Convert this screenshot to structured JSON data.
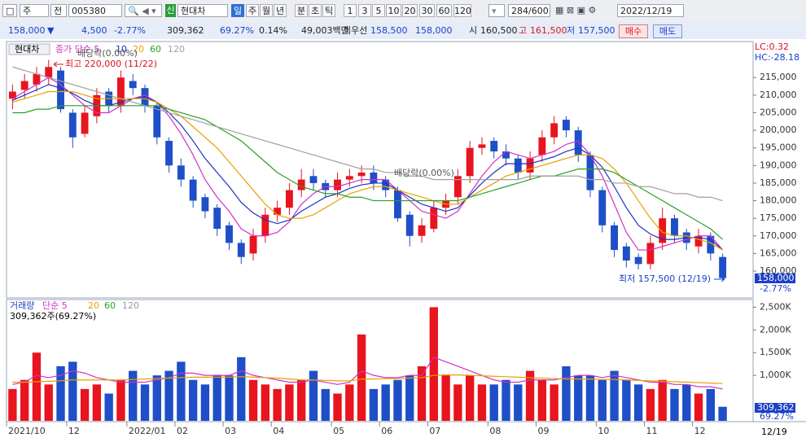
{
  "toolbar": {
    "market": "주",
    "scope": "전",
    "code": "005380",
    "badge": "신",
    "name": "현대차",
    "periods": [
      "일",
      "주",
      "월",
      "년",
      "분",
      "초",
      "틱"
    ],
    "intervals": [
      "1",
      "3",
      "5",
      "10",
      "20",
      "30",
      "60",
      "120"
    ],
    "count": "284/600",
    "date": "2022/12/19"
  },
  "quote": {
    "price": "158,000",
    "direction": "▼",
    "change": "4,500",
    "rate": "-2.77%",
    "volume": "309,362",
    "volume_rate": "69.27%",
    "turnover_rate": "0.14%",
    "amount": "49,003백만",
    "best_label": "최우선",
    "best_ask": "158,500",
    "best_bid": "158,000",
    "open_label": "시",
    "open": "160,500",
    "high_label": "고",
    "high": "161,500",
    "low_label": "저",
    "low": "157,500",
    "buy": "매수",
    "sell": "매도"
  },
  "chart_data": [
    {
      "type": "candlestick",
      "title": "현대차",
      "up_color": "#e8141e",
      "down_color": "#1e4fc8",
      "ylim": [
        152600,
        225000
      ],
      "yticks": [
        {
          "value": 160000,
          "label": "160,000"
        },
        {
          "value": 165000,
          "label": "165,000"
        },
        {
          "value": 170000,
          "label": "170,000"
        },
        {
          "value": 175000,
          "label": "175,000"
        },
        {
          "value": 180000,
          "label": "180,000"
        },
        {
          "value": 185000,
          "label": "185,000"
        },
        {
          "value": 190000,
          "label": "190,000"
        },
        {
          "value": 195000,
          "label": "195,000"
        },
        {
          "value": 200000,
          "label": "200,000"
        },
        {
          "value": 205000,
          "label": "205,000"
        },
        {
          "value": 210000,
          "label": "210,000"
        },
        {
          "value": 215000,
          "label": "215,000"
        }
      ],
      "open": [
        209000,
        211500,
        213000,
        215000,
        217000,
        205000,
        199000,
        204000,
        211000,
        207000,
        214000,
        212000,
        207000,
        197000,
        190000,
        186000,
        181000,
        178000,
        173000,
        168000,
        165000,
        170000,
        176000,
        178000,
        183000,
        187000,
        185000,
        183000,
        186000,
        187000,
        188000,
        186000,
        183000,
        176000,
        170000,
        172000,
        178000,
        181000,
        187000,
        195000,
        197000,
        194000,
        192000,
        188000,
        193000,
        198000,
        203000,
        200000,
        193000,
        183000,
        173000,
        167000,
        164000,
        162000,
        168000,
        175000,
        171000,
        167000,
        170000,
        164000
      ],
      "high": [
        213000,
        216000,
        218000,
        220000,
        218000,
        206000,
        207000,
        212000,
        212000,
        217000,
        216000,
        213000,
        208000,
        198000,
        192000,
        187000,
        182000,
        179000,
        174000,
        169000,
        172000,
        178000,
        180000,
        185000,
        189000,
        189000,
        186000,
        188000,
        189000,
        190000,
        190000,
        187000,
        184000,
        177000,
        175000,
        180000,
        182000,
        189000,
        197000,
        198000,
        198000,
        196000,
        193000,
        194000,
        200000,
        204000,
        204000,
        201000,
        194000,
        184000,
        174000,
        168000,
        165000,
        170000,
        178000,
        176000,
        172000,
        172000,
        171000,
        165000
      ],
      "low": [
        206000,
        209000,
        211000,
        213000,
        205000,
        195000,
        198000,
        202000,
        205000,
        205000,
        210000,
        205000,
        196000,
        188000,
        184000,
        178000,
        175000,
        170000,
        166000,
        162000,
        163000,
        168000,
        174000,
        176000,
        181000,
        183000,
        181000,
        181000,
        184000,
        185000,
        183000,
        181000,
        174000,
        167000,
        168000,
        171000,
        176000,
        179000,
        185000,
        193000,
        192000,
        190000,
        186000,
        186000,
        191000,
        196000,
        198000,
        191000,
        181000,
        171000,
        164000,
        161000,
        160500,
        160500,
        166000,
        168000,
        166000,
        165000,
        163000,
        157500
      ],
      "close": [
        211000,
        214000,
        216000,
        218000,
        206000,
        198000,
        205000,
        210000,
        207000,
        215000,
        212000,
        207000,
        198000,
        190000,
        186000,
        180000,
        177000,
        172000,
        168000,
        164000,
        170000,
        176000,
        178000,
        183000,
        186000,
        185000,
        183000,
        186000,
        187000,
        188000,
        185000,
        183000,
        175000,
        170000,
        173000,
        178000,
        180000,
        187000,
        195000,
        196000,
        194000,
        192000,
        188000,
        192000,
        198000,
        202000,
        200000,
        193000,
        183000,
        173000,
        166000,
        163000,
        162000,
        168000,
        175000,
        170000,
        168000,
        170000,
        165000,
        158000
      ],
      "series": [
        {
          "name": "종가 단순 5",
          "color": "#d030c8",
          "values": [
            209000,
            211000,
            213000,
            215000,
            213000,
            210000,
            207000,
            205000,
            205000,
            207000,
            209000,
            210000,
            208000,
            204000,
            199000,
            193000,
            186000,
            181000,
            177000,
            172000,
            170000,
            170000,
            171000,
            174000,
            179000,
            182000,
            184000,
            184000,
            185000,
            186000,
            186000,
            186000,
            183000,
            180000,
            177000,
            176000,
            175000,
            177000,
            182000,
            187000,
            191000,
            194000,
            193000,
            192000,
            193000,
            194000,
            196000,
            197000,
            193000,
            187000,
            179000,
            171000,
            166000,
            166000,
            167000,
            168000,
            169000,
            170000,
            170000,
            166000
          ]
        },
        {
          "name": "10",
          "color": "#2030c0",
          "values": [
            208500,
            210000,
            211500,
            213000,
            212000,
            210500,
            208500,
            207000,
            207000,
            208000,
            209000,
            209500,
            208000,
            205000,
            201500,
            197000,
            192000,
            188000,
            184000,
            179500,
            176500,
            174500,
            173500,
            174500,
            177000,
            179000,
            181000,
            182000,
            183500,
            184500,
            185000,
            185000,
            183000,
            181000,
            179000,
            178000,
            177000,
            178000,
            181500,
            185000,
            188000,
            190500,
            190500,
            190500,
            191500,
            192500,
            194000,
            195000,
            193000,
            189500,
            184000,
            178000,
            173000,
            170500,
            169000,
            169000,
            169500,
            169500,
            169000,
            166000
          ]
        },
        {
          "name": "20",
          "color": "#e8a000",
          "values": [
            208000,
            209000,
            210000,
            211000,
            211000,
            211000,
            210000,
            209000,
            209000,
            209000,
            209000,
            209000,
            208000,
            206000,
            204000,
            201000,
            198000,
            195000,
            191000,
            187000,
            183000,
            179000,
            176000,
            175000,
            175000,
            176000,
            178000,
            180000,
            182000,
            183000,
            184000,
            184000,
            183000,
            182000,
            181000,
            180000,
            179000,
            179000,
            181000,
            183000,
            185000,
            187000,
            188000,
            189000,
            190000,
            191000,
            192000,
            193000,
            193000,
            192000,
            189000,
            185000,
            180000,
            175000,
            171000,
            170000,
            170000,
            169000,
            168000,
            166000
          ]
        },
        {
          "name": "60",
          "color": "#28a028",
          "values": [
            205000,
            205000,
            206000,
            206000,
            207000,
            207000,
            207000,
            207000,
            207000,
            207000,
            207000,
            207000,
            207000,
            206000,
            205000,
            204000,
            203000,
            201000,
            199000,
            197000,
            194000,
            191000,
            188000,
            186000,
            184000,
            183000,
            182000,
            182000,
            181000,
            181000,
            180000,
            180000,
            180000,
            180000,
            180000,
            180000,
            180000,
            180000,
            181000,
            182000,
            183000,
            184000,
            185000,
            186000,
            187000,
            187000,
            188000,
            189000,
            189000,
            189000,
            188000,
            186000,
            184000,
            182000,
            180000,
            178000,
            176000,
            174000,
            172000,
            169000
          ]
        },
        {
          "name": "120",
          "color": "#a0a0a0",
          "values": [
            218000,
            217000,
            216000,
            215000,
            214000,
            213000,
            212000,
            211000,
            210000,
            209000,
            208000,
            207000,
            206000,
            205000,
            204000,
            203000,
            202000,
            201000,
            200000,
            199000,
            198000,
            197000,
            196000,
            195000,
            194000,
            193000,
            192000,
            191000,
            190000,
            189000,
            189000,
            188000,
            188000,
            187000,
            187000,
            186000,
            186000,
            186000,
            186000,
            186000,
            186000,
            186000,
            186000,
            187000,
            187000,
            187000,
            187000,
            187000,
            186000,
            186000,
            185000,
            185000,
            184000,
            184000,
            183000,
            182000,
            182000,
            181000,
            181000,
            180000
          ]
        }
      ],
      "annotations": [
        "배당락(0.00%)",
        "최고 220,000 (11/22)",
        "배당락(0.00%)",
        "최저 157,500 (12/19)"
      ],
      "lc": "LC:0.32",
      "hc": "HC:-28.18",
      "last_label": "158,000",
      "last_rate_label": "-2.77%"
    },
    {
      "type": "bar",
      "title": "거래량",
      "categories": [
        "2021/10",
        null,
        null,
        null,
        null,
        "12",
        null,
        null,
        null,
        null,
        "2022/01",
        null,
        null,
        null,
        "02",
        null,
        null,
        null,
        "03",
        null,
        null,
        null,
        "04",
        null,
        null,
        null,
        null,
        "05",
        null,
        null,
        null,
        "06",
        null,
        null,
        null,
        "07",
        null,
        null,
        null,
        null,
        "08",
        null,
        null,
        null,
        "09",
        null,
        null,
        null,
        null,
        "10",
        null,
        null,
        null,
        "11",
        null,
        null,
        null,
        "12",
        null,
        null
      ],
      "ylim": [
        0,
        2650000
      ],
      "yticks": [
        {
          "value": 1000000,
          "label": "1,000K"
        },
        {
          "value": 1500000,
          "label": "1,500K"
        },
        {
          "value": 2000000,
          "label": "2,000K"
        },
        {
          "value": 2500000,
          "label": "2,500K"
        }
      ],
      "values": [
        700000,
        900000,
        1500000,
        800000,
        1200000,
        1300000,
        700000,
        800000,
        600000,
        900000,
        1100000,
        800000,
        1000000,
        1100000,
        1300000,
        900000,
        800000,
        1000000,
        1000000,
        1400000,
        900000,
        800000,
        700000,
        800000,
        900000,
        1100000,
        700000,
        600000,
        800000,
        1900000,
        700000,
        800000,
        900000,
        1000000,
        1200000,
        2500000,
        1000000,
        800000,
        1000000,
        800000,
        800000,
        900000,
        800000,
        1100000,
        900000,
        800000,
        1200000,
        1000000,
        1000000,
        900000,
        1100000,
        900000,
        800000,
        700000,
        900000,
        700000,
        800000,
        600000,
        700000,
        309362
      ],
      "series": [
        {
          "name": "단순 5",
          "color": "#d030c8",
          "values": [
            800000,
            850000,
            1000000,
            950000,
            1000000,
            1100000,
            1050000,
            950000,
            900000,
            850000,
            850000,
            850000,
            900000,
            950000,
            1050000,
            1050000,
            1000000,
            1000000,
            1000000,
            1100000,
            1000000,
            950000,
            900000,
            850000,
            850000,
            900000,
            850000,
            800000,
            850000,
            1100000,
            1000000,
            950000,
            950000,
            1000000,
            1000000,
            1400000,
            1300000,
            1200000,
            1100000,
            1000000,
            900000,
            850000,
            850000,
            900000,
            900000,
            900000,
            950000,
            1000000,
            1000000,
            950000,
            1000000,
            950000,
            900000,
            850000,
            850000,
            800000,
            800000,
            750000,
            750000,
            700000
          ]
        },
        {
          "name": "20",
          "color": "#e8a000",
          "values": [
            850000,
            850000,
            860000,
            870000,
            880000,
            900000,
            900000,
            900000,
            900000,
            900000,
            910000,
            920000,
            930000,
            940000,
            950000,
            960000,
            960000,
            960000,
            960000,
            970000,
            960000,
            950000,
            940000,
            920000,
            900000,
            900000,
            890000,
            880000,
            880000,
            920000,
            920000,
            930000,
            930000,
            940000,
            950000,
            1000000,
            1010000,
            1010000,
            1000000,
            990000,
            980000,
            970000,
            960000,
            950000,
            940000,
            930000,
            920000,
            920000,
            920000,
            910000,
            910000,
            900000,
            890000,
            880000,
            870000,
            860000,
            850000,
            840000,
            830000,
            820000
          ]
        }
      ],
      "other_legend": [
        {
          "name": "60",
          "color": "#28a028"
        },
        {
          "name": "120",
          "color": "#999999"
        }
      ],
      "info": "309,362주(69.27%)",
      "last_label": "309,362",
      "last_rate_label": "69.27%",
      "corner_date": "12/19"
    }
  ]
}
